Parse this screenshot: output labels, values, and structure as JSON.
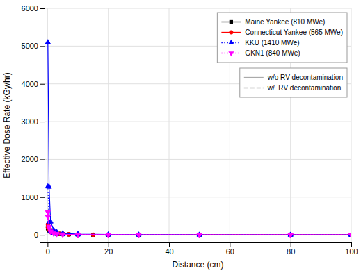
{
  "chart_data": {
    "type": "line",
    "x_label": "Distance (cm)",
    "y_label": "Effective Dose Rate (kGy/hr)",
    "xlim": [
      -1,
      100
    ],
    "ylim": [
      -200,
      6000
    ],
    "xticks": [
      0,
      20,
      40,
      60,
      80,
      100
    ],
    "yticks": [
      0,
      1000,
      2000,
      3000,
      4000,
      5000,
      6000
    ],
    "grid": true,
    "legend": "upper right",
    "series": [
      {
        "name": "Maine Yankee (810 MWe)",
        "color": "#000000",
        "marker": "square",
        "line_style": "solid",
        "x": [
          0.1,
          0.3,
          0.5,
          0.8,
          1,
          1.5,
          2,
          3,
          4,
          5,
          7,
          10,
          15,
          20,
          30,
          50,
          80,
          100
        ],
        "values": [
          230,
          190,
          155,
          125,
          100,
          75,
          55,
          38,
          28,
          22,
          14,
          9,
          5,
          3.5,
          2,
          1.2,
          0.7,
          0.5
        ]
      },
      {
        "name": "Maine Yankee (810 MWe)",
        "color": "#000000",
        "marker": "square",
        "line_style": "dotted",
        "x": [
          0.1,
          0.3,
          0.5,
          0.8,
          1,
          1.5,
          2,
          3,
          4,
          5,
          7,
          10,
          15,
          20,
          30,
          50,
          80,
          100
        ],
        "values": [
          170,
          140,
          115,
          92,
          74,
          55,
          40,
          27,
          20,
          15,
          10,
          6.5,
          3.8,
          2.6,
          1.5,
          0.9,
          0.5,
          0.3
        ]
      },
      {
        "name": "Connecticut Yankee (565 MWe)",
        "color": "#ff0000",
        "marker": "circle",
        "line_style": "solid",
        "x": [
          0.1,
          0.3,
          0.5,
          0.8,
          1,
          1.5,
          2,
          3,
          4,
          5,
          7,
          10,
          15,
          20,
          30,
          50,
          80,
          100
        ],
        "values": [
          280,
          230,
          185,
          148,
          118,
          88,
          65,
          44,
          32,
          25,
          16,
          10,
          6,
          4,
          2.3,
          1.4,
          0.8,
          0.5
        ]
      },
      {
        "name": "Connecticut Yankee (565 MWe)",
        "color": "#ff0000",
        "marker": "circle",
        "line_style": "dotted",
        "x": [
          0.1,
          0.3,
          0.5,
          0.8,
          1,
          1.5,
          2,
          3,
          4,
          5,
          7,
          10,
          15,
          20,
          30,
          50,
          80,
          100
        ],
        "values": [
          200,
          164,
          132,
          106,
          84,
          62,
          46,
          31,
          23,
          17,
          11,
          7,
          4.2,
          2.9,
          1.7,
          1.0,
          0.6,
          0.4
        ]
      },
      {
        "name": "KKU (1410 MWe)",
        "color": "#0000ff",
        "marker": "triangle-up",
        "line_style": "solid",
        "x": [
          0.1,
          0.5,
          1,
          2,
          3,
          5,
          10,
          20,
          30,
          50,
          80,
          100
        ],
        "values": [
          5100,
          1270,
          350,
          130,
          75,
          40,
          18,
          8,
          4.5,
          2.5,
          1.3,
          0.8
        ]
      },
      {
        "name": "KKU (1410 MWe)",
        "color": "#0000ff",
        "marker": "triangle-up",
        "line_style": "dotted",
        "x": [
          0.1,
          0.5,
          1,
          2,
          3,
          5,
          10,
          20,
          30,
          50,
          80,
          100
        ],
        "values": [
          1280,
          340,
          100,
          40,
          24,
          13,
          6,
          2.8,
          1.7,
          1.0,
          0.55,
          0.35
        ]
      },
      {
        "name": "GKN1 (840 MWe)",
        "color": "#ff00ff",
        "marker": "triangle-down",
        "line_style": "solid",
        "x": [
          0.1,
          0.5,
          1,
          2,
          3,
          5,
          10,
          20,
          30,
          50,
          80,
          100
        ],
        "values": [
          600,
          220,
          95,
          42,
          26,
          15,
          7,
          3.2,
          2,
          1.2,
          0.65,
          0.4
        ]
      },
      {
        "name": "GKN1 (840 MWe)",
        "color": "#ff00ff",
        "marker": "triangle-down",
        "line_style": "dotted",
        "x": [
          0.1,
          0.5,
          1,
          2,
          3,
          5,
          10,
          20,
          30,
          50,
          80,
          100
        ],
        "values": [
          480,
          178,
          77,
          34,
          21,
          12,
          5.5,
          2.6,
          1.6,
          0.95,
          0.52,
          0.32
        ]
      }
    ],
    "legends": [
      {
        "entries": [
          {
            "name": "Maine Yankee (810 MWe)",
            "color": "#000000",
            "marker": "square",
            "line_style": "solid"
          },
          {
            "name": "Connecticut Yankee (565 MWe)",
            "color": "#ff0000",
            "marker": "circle",
            "line_style": "solid"
          },
          {
            "name": "KKU (1410 MWe)",
            "color": "#0000ff",
            "marker": "triangle-up",
            "line_style": "dotted"
          },
          {
            "name": "GKN1 (840 MWe)",
            "color": "#ff00ff",
            "marker": "triangle-down",
            "line_style": "dotted"
          }
        ]
      },
      {
        "entries": [
          {
            "name": "w/o RV decontamination",
            "color": "#aaaaaa",
            "line_style": "solid"
          },
          {
            "name": "w/  RV decontamination",
            "color": "#aaaaaa",
            "line_style": "dashed"
          }
        ]
      }
    ]
  }
}
